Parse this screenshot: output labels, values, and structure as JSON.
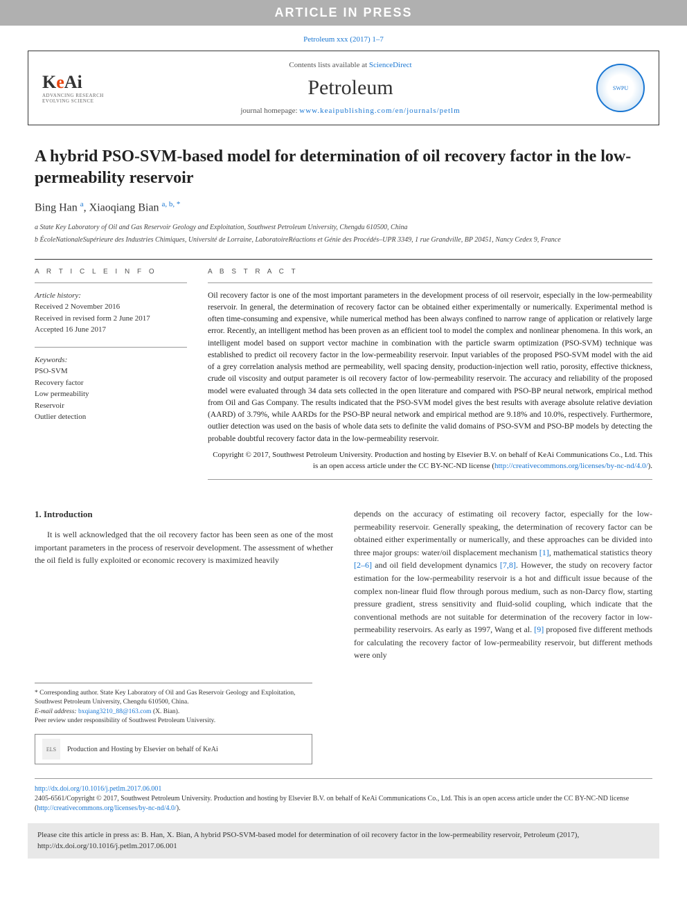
{
  "header_bar": "ARTICLE IN PRESS",
  "journal_ref": "Petroleum xxx (2017) 1–7",
  "keai": {
    "brand_k": "K",
    "brand_e": "e",
    "brand_ai": "Ai",
    "tag1": "ADVANCING RESEARCH",
    "tag2": "EVOLVING SCIENCE"
  },
  "journal_box": {
    "contents_prefix": "Contents lists available at ",
    "contents_link": "ScienceDirect",
    "journal_name": "Petroleum",
    "homepage_prefix": "journal homepage: ",
    "homepage_link": "www.keaipublishing.com/en/journals/petlm"
  },
  "title": "A hybrid PSO-SVM-based model for determination of oil recovery factor in the low-permeability reservoir",
  "authors": {
    "a1_name": "Bing Han ",
    "a1_aff": "a",
    "sep": ", ",
    "a2_name": "Xiaoqiang Bian ",
    "a2_aff": "a, b, *"
  },
  "affiliations": {
    "a": "a State Key Laboratory of Oil and Gas Reservoir Geology and Exploitation, Southwest Petroleum University, Chengdu 610500, China",
    "b": "b ÉcoleNationaleSupérieure des Industries Chimiques, Université de Lorraine, LaboratoireRéactions et Génie des Procédés–UPR 3349, 1 rue Grandville, BP 20451, Nancy Cedex 9, France"
  },
  "article_info": {
    "label": "A R T I C L E   I N F O",
    "history_label": "Article history:",
    "received": "Received 2 November 2016",
    "revised": "Received in revised form 2 June 2017",
    "accepted": "Accepted 16 June 2017",
    "keywords_label": "Keywords:",
    "kw1": "PSO-SVM",
    "kw2": "Recovery factor",
    "kw3": "Low permeability",
    "kw4": "Reservoir",
    "kw5": "Outlier detection"
  },
  "abstract": {
    "label": "A B S T R A C T",
    "text": "Oil recovery factor is one of the most important parameters in the development process of oil reservoir, especially in the low-permeability reservoir. In general, the determination of recovery factor can be obtained either experimentally or numerically. Experimental method is often time-consuming and expensive, while numerical method has been always confined to narrow range of application or relatively large error. Recently, an intelligent method has been proven as an efficient tool to model the complex and nonlinear phenomena. In this work, an intelligent model based on support vector machine in combination with the particle swarm optimization (PSO-SVM) technique was established to predict oil recovery factor in the low-permeability reservoir. Input variables of the proposed PSO-SVM model with the aid of a grey correlation analysis method are permeability, well spacing density, production-injection well ratio, porosity, effective thickness, crude oil viscosity and output parameter is oil recovery factor of low-permeability reservoir. The accuracy and reliability of the proposed model were evaluated through 34 data sets collected in the open literature and compared with PSO-BP neural network, empirical method from Oil and Gas Company. The results indicated that the PSO-SVM model gives the best results with average absolute relative deviation (AARD) of 3.79%, while AARDs for the PSO-BP neural network and empirical method are 9.18% and 10.0%, respectively. Furthermore, outlier detection was used on the basis of whole data sets to definite the valid domains of PSO-SVM and PSO-BP models by detecting the probable doubtful recovery factor data in the low-permeability reservoir.",
    "copyright": "Copyright © 2017, Southwest Petroleum University. Production and hosting by Elsevier B.V. on behalf of KeAi Communications Co., Ltd. This is an open access article under the CC BY-NC-ND license (",
    "copyright_link": "http://creativecommons.org/licenses/by-nc-nd/4.0/",
    "copyright_close": ")."
  },
  "intro": {
    "heading": "1. Introduction",
    "p1": "It is well acknowledged that the oil recovery factor has been seen as one of the most important parameters in the process of reservoir development. The assessment of whether the oil field is fully exploited or economic recovery is maximized heavily",
    "p2a": "depends on the accuracy of estimating oil recovery factor, especially for the low-permeability reservoir. Generally speaking, the determination of recovery factor can be obtained either experimentally or numerically, and these approaches can be divided into three major groups: water/oil displacement mechanism ",
    "ref1": "[1]",
    "p2b": ", mathematical statistics theory ",
    "ref2": "[2–6]",
    "p2c": " and oil field development dynamics ",
    "ref3": "[7,8]",
    "p2d": ". However, the study on recovery factor estimation for the low-permeability reservoir is a hot and difficult issue because of the complex non-linear fluid flow through porous medium, such as non-Darcy flow, starting pressure gradient, stress sensitivity and fluid-solid coupling, which indicate that the conventional methods are not suitable for determination of the recovery factor in low-permeability reservoirs. As early as 1997, Wang et al. ",
    "ref4": "[9]",
    "p2e": " proposed five different methods for calculating the recovery factor of low-permeability reservoir, but different methods were only"
  },
  "footnotes": {
    "corr": "* Corresponding author. State Key Laboratory of Oil and Gas Reservoir Geology and Exploitation, Southwest Petroleum University, Chengdu 610500, China.",
    "email_label": "E-mail address: ",
    "email": "bxqiang3210_88@163.com",
    "email_suffix": " (X. Bian).",
    "peer": "Peer review under responsibility of Southwest Petroleum University."
  },
  "hosting": "Production and Hosting by Elsevier on behalf of KeAi",
  "bottom": {
    "doi": "http://dx.doi.org/10.1016/j.petlm.2017.06.001",
    "issn": "2405-6561/Copyright © 2017, Southwest Petroleum University. Production and hosting by Elsevier B.V. on behalf of KeAi Communications Co., Ltd. This is an open access article under the CC BY-NC-ND license (",
    "cc_link": "http://creativecommons.org/licenses/by-nc-nd/4.0/",
    "issn_close": ")."
  },
  "cite_box": "Please cite this article in press as: B. Han, X. Bian, A hybrid PSO-SVM-based model for determination of oil recovery factor in the low-permeability reservoir, Petroleum (2017), http://dx.doi.org/10.1016/j.petlm.2017.06.001",
  "colors": {
    "link": "#1976d2",
    "header_bg": "#b0b0b0",
    "keai_orange": "#e84610"
  }
}
